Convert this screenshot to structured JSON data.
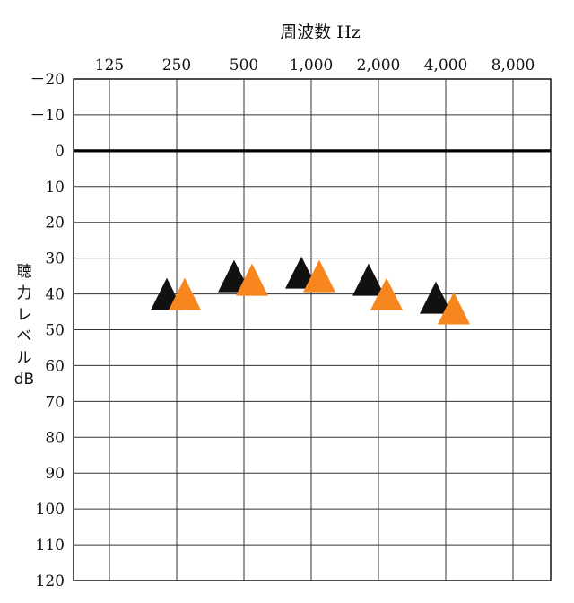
{
  "chart_data": {
    "type": "scatter",
    "title": "",
    "xlabel": "周波数 Hz",
    "ylabel_lines": [
      "聴",
      "力",
      "レ",
      "ベ",
      "ル",
      "dB"
    ],
    "x_categories": [
      "125",
      "250",
      "500",
      "1,000",
      "2,000",
      "4,000",
      "8,000"
    ],
    "y_ticks": [
      "－20",
      "－10",
      "0",
      "10",
      "20",
      "30",
      "40",
      "50",
      "60",
      "70",
      "80",
      "90",
      "100",
      "110",
      "120"
    ],
    "ylim": [
      -20,
      120
    ],
    "y_inverted": true,
    "reference_line_y": 0,
    "grid": true,
    "legend": "none",
    "series": [
      {
        "color": "#111111",
        "marker": "triangle",
        "points": [
          {
            "x": "250",
            "y": 40
          },
          {
            "x": "500",
            "y": 35
          },
          {
            "x": "1,000",
            "y": 34
          },
          {
            "x": "2,000",
            "y": 36
          },
          {
            "x": "4,000",
            "y": 41
          }
        ]
      },
      {
        "color": "#f7861f",
        "marker": "triangle",
        "points": [
          {
            "x": "250",
            "y": 40
          },
          {
            "x": "500",
            "y": 36
          },
          {
            "x": "1,000",
            "y": 35
          },
          {
            "x": "2,000",
            "y": 40
          },
          {
            "x": "4,000",
            "y": 44
          }
        ]
      }
    ]
  }
}
